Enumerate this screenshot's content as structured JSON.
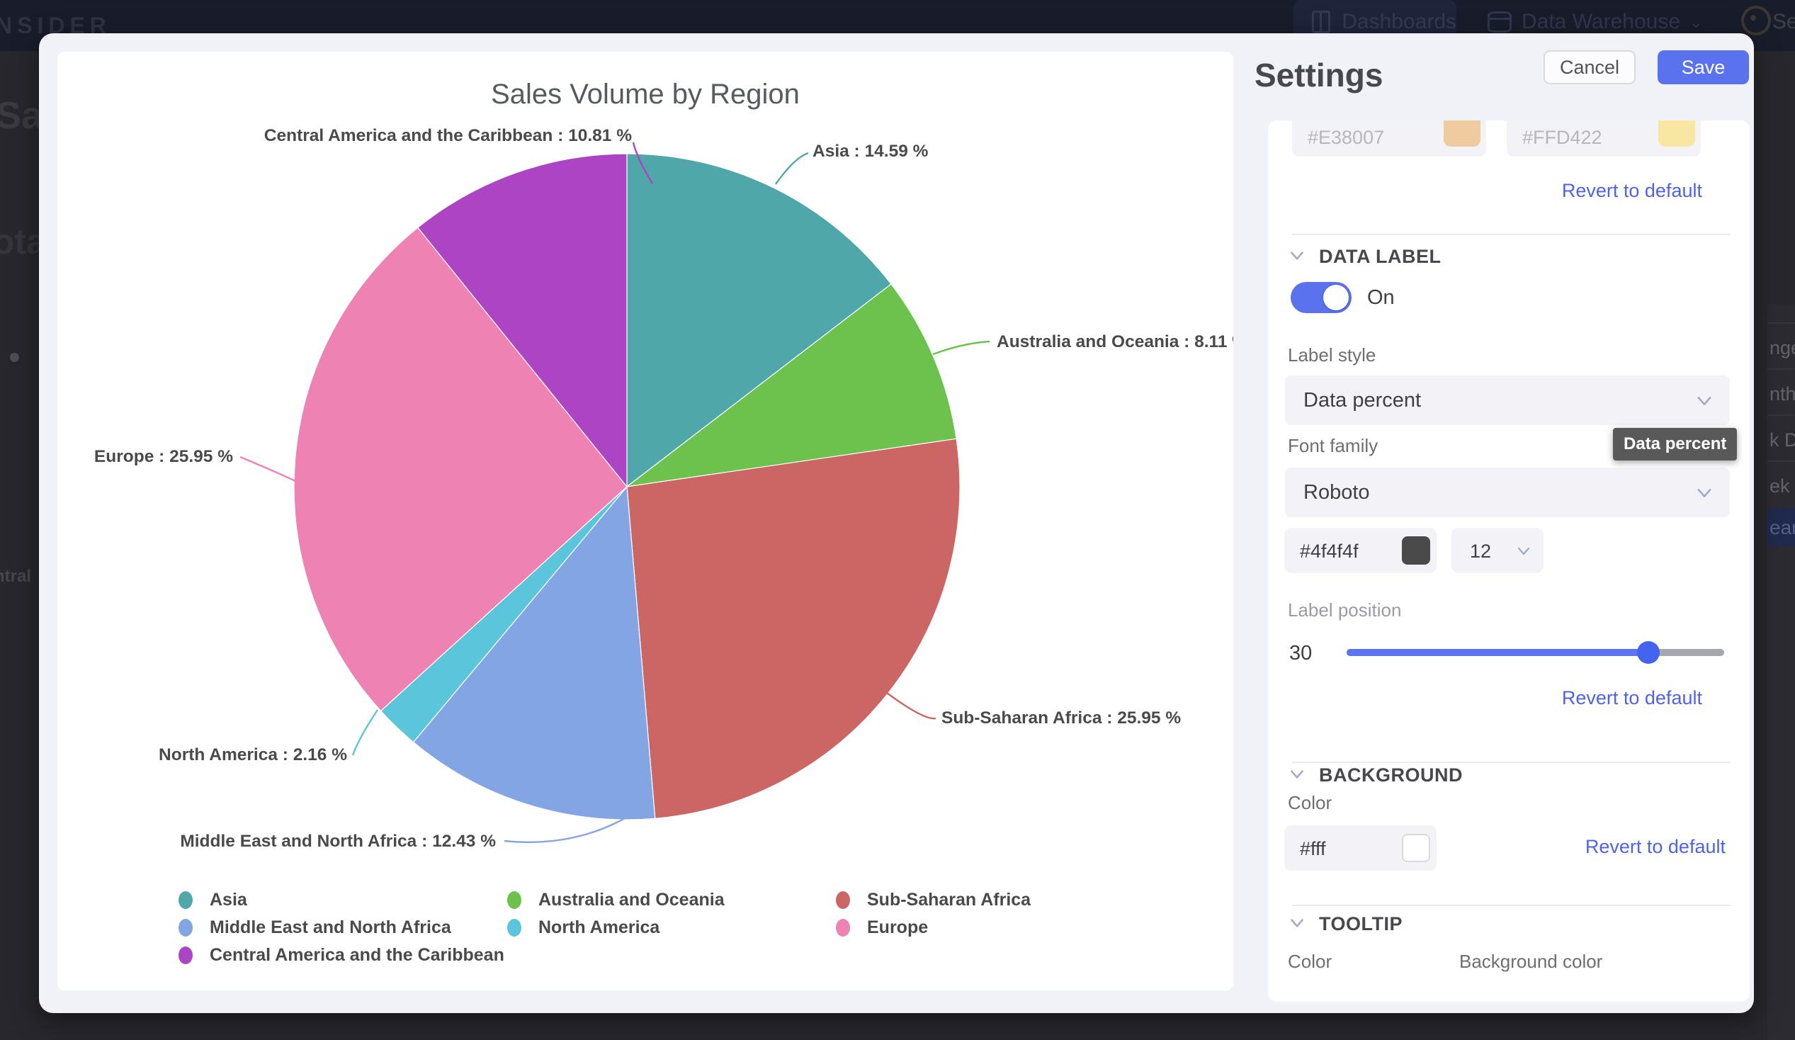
{
  "navbar": {
    "logo": "NSIDER",
    "dashboards": "Dashboards",
    "data_warehouse": "Data Warehouse",
    "right_fragment": "Se"
  },
  "background_fragments": {
    "left": [
      "Sal",
      "ota",
      "ntral"
    ],
    "right": [
      "nge",
      "nth",
      "k D",
      "ek",
      "ear"
    ]
  },
  "chart_data": {
    "type": "pie",
    "title": "Sales Volume by Region",
    "unit": "%",
    "start_angle_deg": -90,
    "direction": "clockwise",
    "label_format": "{name} : {percent} %",
    "legend_position": "bottom",
    "background": "#ffffff",
    "series": [
      {
        "name": "Asia",
        "percent": 14.59,
        "color": "#4FA7A9"
      },
      {
        "name": "Australia and Oceania",
        "percent": 8.11,
        "color": "#6CC24C"
      },
      {
        "name": "Sub-Saharan Africa",
        "percent": 25.95,
        "color": "#CC6665"
      },
      {
        "name": "Middle East and North Africa",
        "percent": 12.43,
        "color": "#84A5E4"
      },
      {
        "name": "North America",
        "percent": 2.16,
        "color": "#5BC6DB"
      },
      {
        "name": "Europe",
        "percent": 25.95,
        "color": "#EE82B2"
      },
      {
        "name": "Central America and the Caribbean",
        "percent": 10.81,
        "color": "#AC44C4"
      }
    ]
  },
  "settings": {
    "title": "Settings",
    "cancel_label": "Cancel",
    "save_label": "Save",
    "series_colors": {
      "color1": {
        "value": "#E38007",
        "swatch_display": "#EFCC9F"
      },
      "color2": {
        "value": "#FFD422",
        "swatch_display": "#F8E7A3"
      },
      "revert_label": "Revert to default"
    },
    "data_label": {
      "section": "DATA LABEL",
      "toggle_state": "On",
      "label_style_label": "Label style",
      "label_style_value": "Data percent",
      "tooltip_text": "Data percent",
      "font_family_label": "Font family",
      "font_family_value": "Roboto",
      "font_color": "#4f4f4f",
      "font_color_swatch": "#4A4A4A",
      "font_size": "12",
      "label_position_label": "Label position",
      "label_position_value": "30",
      "revert_label": "Revert to default"
    },
    "background": {
      "section": "BACKGROUND",
      "color_label": "Color",
      "color_value": "#fff",
      "color_swatch": "#FFFFFF",
      "revert_label": "Revert to default"
    },
    "tooltip": {
      "section": "TOOLTIP",
      "color_label": "Color",
      "background_color_label": "Background color"
    },
    "accent_color": "#5B72EE",
    "link_color": "#4F63E7"
  }
}
